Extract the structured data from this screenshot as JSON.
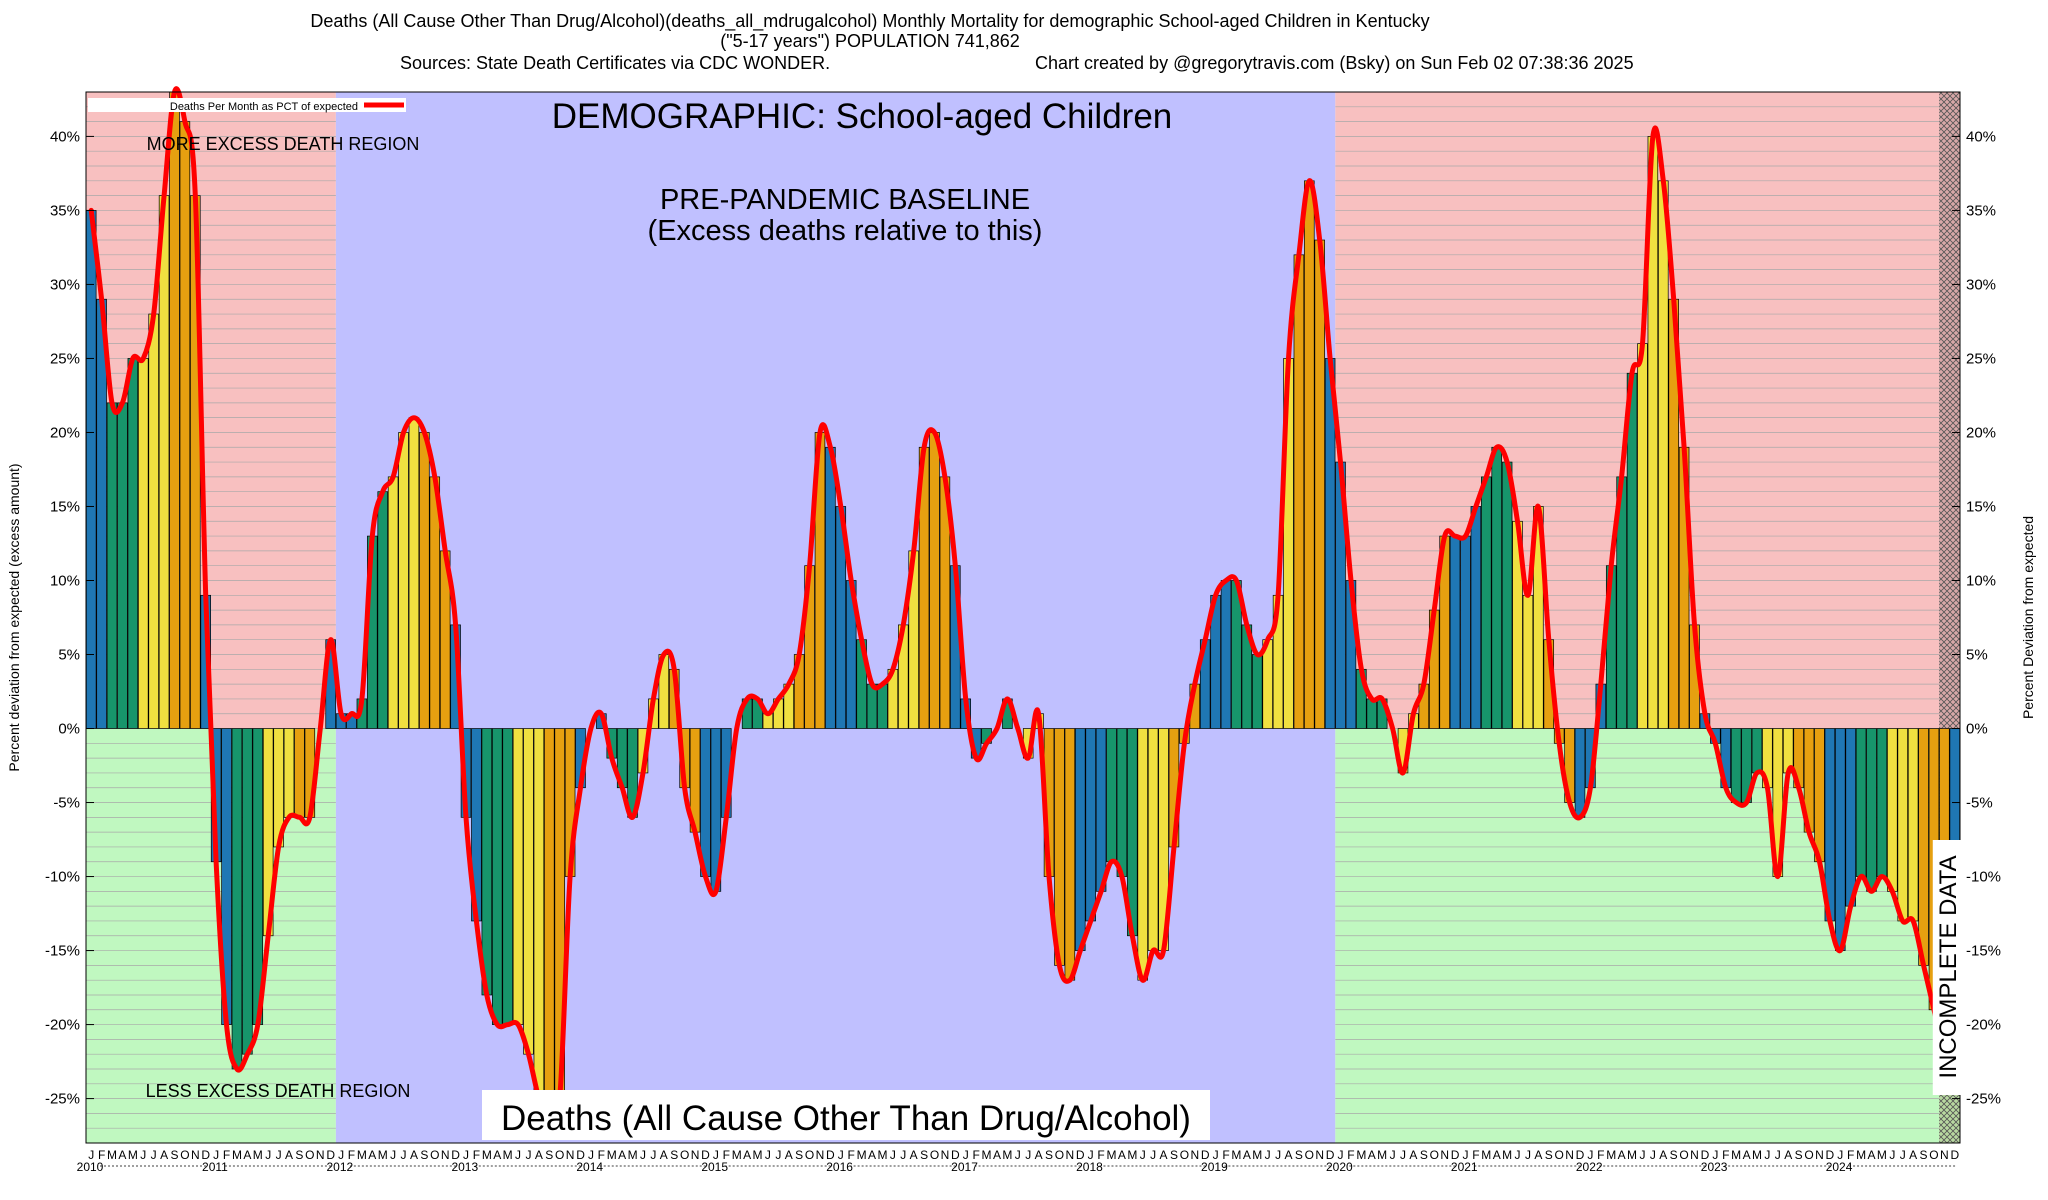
{
  "header": {
    "line1": "Deaths (All Cause Other Than Drug/Alcohol)(deaths_all_mdrugalcohol) Monthly Mortality for demographic School-aged Children in Kentucky",
    "line2": "(\"5-17 years\") POPULATION 741,862",
    "sources": "Sources: State Death Certificates via CDC WONDER.",
    "credit": "Chart created by @gregorytravis.com (Bsky) on Sun Feb 02 07:38:36 2025"
  },
  "chart_data": {
    "type": "bar",
    "start": "2010-01",
    "frequency": "monthly",
    "ylim": [
      -28,
      43
    ],
    "ylabel": "Percent deviation from expected (excess amount)",
    "y2label": "Percent Deviation from expected",
    "yticks": [
      -25,
      -20,
      -15,
      -10,
      -5,
      0,
      5,
      10,
      15,
      20,
      25,
      30,
      35,
      40
    ],
    "ytick_labels": [
      "-25%",
      "-20%",
      "-15%",
      "-10%",
      "-5%",
      "0%",
      "5%",
      "10%",
      "15%",
      "20%",
      "25%",
      "30%",
      "35%",
      "40%"
    ],
    "month_letters": [
      "J",
      "F",
      "M",
      "A",
      "M",
      "J",
      "J",
      "A",
      "S",
      "O",
      "N",
      "D"
    ],
    "years": [
      "2010",
      "2011",
      "2012",
      "2013",
      "2014",
      "2015",
      "2016",
      "2017",
      "2018",
      "2019",
      "2020",
      "2021",
      "2022",
      "2023",
      "2024"
    ],
    "legend": {
      "label": "Deaths Per Month as PCT of expected",
      "line_color": "#ff0000"
    },
    "season_colors": {
      "winter": "#1f77b4",
      "spring": "#17956b",
      "summer": "#f0e040",
      "fall": "#e6a010"
    },
    "bar_edge_color": "#000000",
    "regions": [
      {
        "start": "2010-01",
        "end": "2011-12",
        "type": "excess-background"
      },
      {
        "start": "2012-01",
        "end": "2019-12",
        "type": "baseline",
        "color": "#c0c0ff"
      },
      {
        "start": "2020-01",
        "end": "2024-10",
        "type": "excess-background"
      },
      {
        "start": "2024-11",
        "end": "2024-12",
        "type": "incomplete"
      }
    ],
    "region_colors": {
      "excess_above": "#f8c0c0",
      "excess_below": "#c0f8c0",
      "gridline": "#a8a8a8"
    },
    "annotations": {
      "demographic": "DEMOGRAPHIC: School-aged Children",
      "baseline_line1": "PRE-PANDEMIC BASELINE",
      "baseline_line2": "(Excess deaths relative to this)",
      "more_region": "MORE EXCESS DEATH REGION",
      "less_region": "LESS EXCESS DEATH REGION",
      "incomplete": "INCOMPLETE DATA",
      "cause": "Deaths (All Cause Other Than Drug/Alcohol)"
    },
    "values": [
      35,
      29,
      22,
      22,
      25,
      25,
      28,
      36,
      43,
      41,
      36,
      9,
      -9,
      -20,
      -23,
      -22,
      -20,
      -14,
      -8,
      -6,
      -6,
      -6,
      0,
      6,
      1,
      1,
      2,
      13,
      16,
      17,
      20,
      21,
      20,
      17,
      12,
      7,
      -6,
      -13,
      -18,
      -20,
      -20,
      -20,
      -22,
      -25,
      -27,
      -25,
      -10,
      -4,
      0,
      1,
      -2,
      -4,
      -6,
      -3,
      2,
      5,
      4,
      -4,
      -7,
      -10,
      -11,
      -6,
      0,
      2,
      2,
      1,
      2,
      3,
      5,
      11,
      20,
      19,
      15,
      10,
      6,
      3,
      3,
      4,
      7,
      12,
      19,
      20,
      17,
      11,
      2,
      -2,
      -1,
      0,
      2,
      0,
      -2,
      1,
      -10,
      -16,
      -17,
      -15,
      -13,
      -11,
      -9,
      -10,
      -14,
      -17,
      -15,
      -15,
      -8,
      -1,
      3,
      6,
      9,
      10,
      10,
      7,
      5,
      6,
      9,
      25,
      32,
      37,
      33,
      25,
      18,
      10,
      4,
      2,
      2,
      0,
      -3,
      1,
      3,
      8,
      13,
      13,
      13,
      15,
      17,
      19,
      18,
      14,
      9,
      15,
      6,
      -1,
      -5,
      -6,
      -4,
      3,
      11,
      17,
      24,
      26,
      40,
      37,
      29,
      19,
      7,
      1,
      -1,
      -4,
      -5,
      -5,
      -3,
      -4,
      -10,
      -3,
      -4,
      -7,
      -9,
      -13,
      -15,
      -12,
      -10,
      -11,
      -10,
      -11,
      -13,
      -13,
      -16,
      -19,
      -22,
      -24
    ]
  }
}
